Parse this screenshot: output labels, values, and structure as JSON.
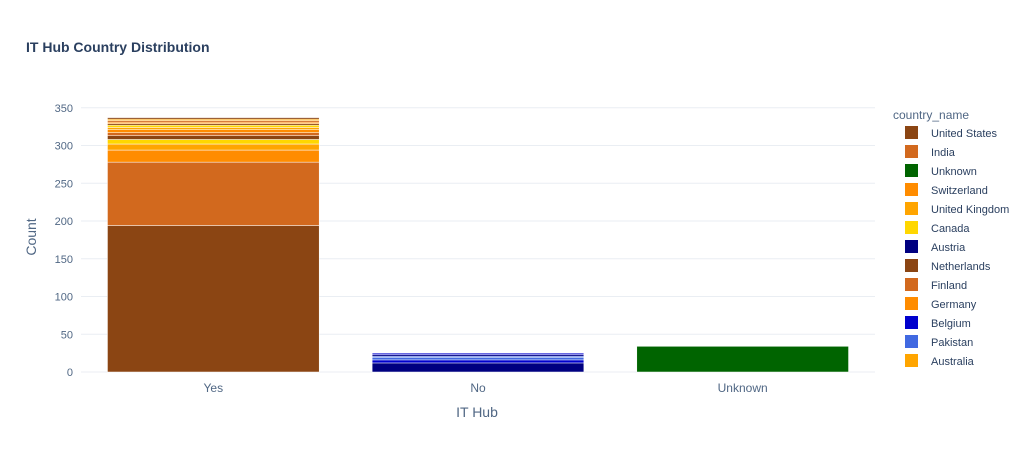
{
  "chart_data": {
    "type": "bar",
    "barmode": "stack",
    "title": "IT Hub Country Distribution",
    "xlabel": "IT Hub",
    "ylabel": "Count",
    "categories": [
      "Yes",
      "No",
      "Unknown"
    ],
    "ylim": [
      0,
      355
    ],
    "yticks": [
      0,
      50,
      100,
      150,
      200,
      250,
      300,
      350
    ],
    "grid": true,
    "legend_title": "country_name",
    "legend_position": "right",
    "series": [
      {
        "name": "United States",
        "color": "#8B4513",
        "values": [
          194,
          0,
          0
        ]
      },
      {
        "name": "India",
        "color": "#D2691E",
        "values": [
          84,
          0,
          0
        ]
      },
      {
        "name": "Unknown",
        "color": "#006400",
        "values": [
          0,
          0,
          34
        ]
      },
      {
        "name": "Switzerland",
        "color": "#FF8C00",
        "values": [
          16,
          0,
          0
        ]
      },
      {
        "name": "United Kingdom",
        "color": "#FFA500",
        "values": [
          8,
          0,
          0
        ]
      },
      {
        "name": "Canada",
        "color": "#FFD700",
        "values": [
          6,
          0,
          0
        ]
      },
      {
        "name": "Austria",
        "color": "#000080",
        "values": [
          0,
          12,
          0
        ]
      },
      {
        "name": "Netherlands",
        "color": "#8B4513",
        "values": [
          5,
          0,
          0
        ]
      },
      {
        "name": "Finland",
        "color": "#D2691E",
        "values": [
          4,
          0,
          0
        ]
      },
      {
        "name": "Germany",
        "color": "#FF8C00",
        "values": [
          4,
          0,
          0
        ]
      },
      {
        "name": "Belgium",
        "color": "#0000CD",
        "values": [
          0,
          4,
          0
        ]
      },
      {
        "name": "Pakistan",
        "color": "#4169E1",
        "values": [
          0,
          3,
          0
        ]
      },
      {
        "name": "Australia",
        "color": "#FFA500",
        "values": [
          3,
          0,
          0
        ]
      },
      {
        "name": "",
        "color": "#FFD700",
        "values": [
          3,
          0,
          0
        ]
      },
      {
        "name": "",
        "color": "#8B4513",
        "values": [
          2,
          0,
          0
        ]
      },
      {
        "name": "",
        "color": "#FF8C00",
        "values": [
          2,
          0,
          0
        ]
      },
      {
        "name": "",
        "color": "#D2691E",
        "values": [
          2,
          0,
          0
        ]
      },
      {
        "name": "",
        "color": "#FFA500",
        "values": [
          2,
          0,
          0
        ]
      },
      {
        "name": "",
        "color": "#4169E1",
        "values": [
          0,
          2,
          0
        ]
      },
      {
        "name": "",
        "color": "#000080",
        "values": [
          0,
          2,
          0
        ]
      },
      {
        "name": "",
        "color": "#0000CD",
        "values": [
          0,
          2,
          0
        ]
      },
      {
        "name": "",
        "color": "#8B4513",
        "values": [
          2,
          0,
          0
        ]
      }
    ]
  }
}
